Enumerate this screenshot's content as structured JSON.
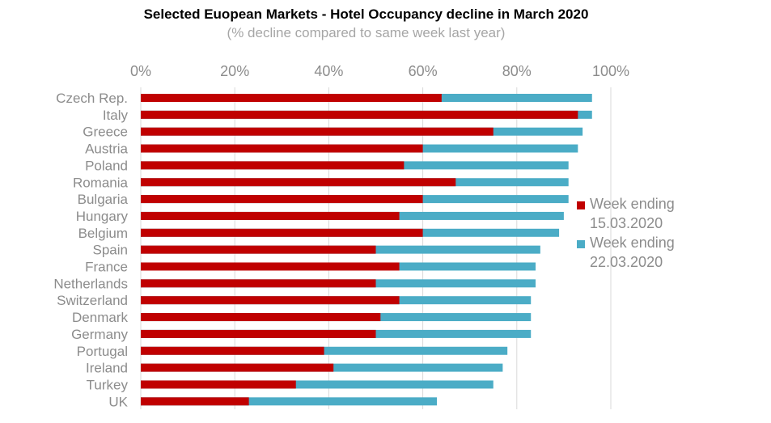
{
  "chart_data": {
    "type": "bar",
    "orientation": "horizontal",
    "title": "Selected Euopean Markets - Hotel Occupancy decline in March 2020",
    "subtitle": "(% decline compared to same week last year)",
    "categories": [
      "Czech Rep.",
      "Italy",
      "Greece",
      "Austria",
      "Poland",
      "Romania",
      "Bulgaria",
      "Hungary",
      "Belgium",
      "Spain",
      "France",
      "Netherlands",
      "Switzerland",
      "Denmark",
      "Germany",
      "Portugal",
      "Ireland",
      "Turkey",
      "UK"
    ],
    "series": [
      {
        "name_lines": [
          "Week ending",
          "15.03.2020"
        ],
        "color": "#c00000",
        "values": [
          64,
          93,
          75,
          60,
          56,
          67,
          60,
          55,
          60,
          50,
          55,
          50,
          55,
          51,
          50,
          39,
          41,
          33,
          23
        ]
      },
      {
        "name_lines": [
          "Week ending",
          "22.03.2020"
        ],
        "color": "#4bacc6",
        "values": [
          96,
          96,
          94,
          93,
          91,
          91,
          91,
          90,
          89,
          85,
          84,
          84,
          83,
          83,
          83,
          78,
          77,
          75,
          63
        ]
      }
    ],
    "xlim": [
      0,
      100
    ],
    "xticks": [
      "0%",
      "20%",
      "40%",
      "60%",
      "80%",
      "100%"
    ],
    "x_axis_position": "top",
    "grid": true,
    "legend_position": "right"
  },
  "colors": {
    "text_gray": "#8c8c8c",
    "title_gray": "#a6a6a6",
    "grid": "#d9d9d9"
  }
}
